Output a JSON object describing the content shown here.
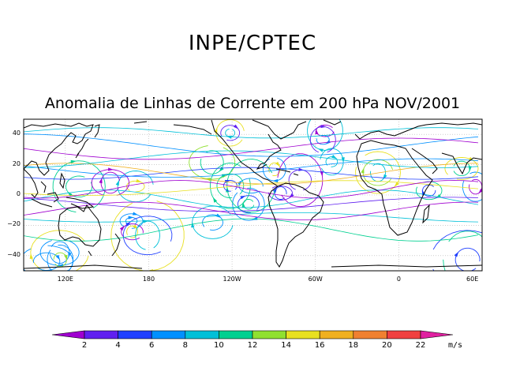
{
  "header": {
    "organization": "INPE/CPTEC",
    "title": "Anomalia de Linhas de Corrente em 200 hPa NOV/2001"
  },
  "map": {
    "lat_labels": [
      "40",
      "20",
      "0",
      "−20",
      "−40"
    ],
    "lon_labels": [
      "120E",
      "180",
      "120W",
      "60W",
      "0",
      "60E"
    ],
    "lat_range": [
      -50,
      50
    ],
    "lon_range": [
      90,
      420
    ]
  },
  "colorbar": {
    "labels": [
      "2",
      "4",
      "6",
      "8",
      "10",
      "12",
      "14",
      "16",
      "18",
      "20",
      "22"
    ],
    "colors": [
      "#a000d0",
      "#6020f0",
      "#2040ff",
      "#0090ff",
      "#00c0d8",
      "#00d090",
      "#90e030",
      "#e8e020",
      "#f0b020",
      "#f08030",
      "#f04040",
      "#f02080",
      "#e020a0"
    ],
    "unit": "m/s"
  }
}
